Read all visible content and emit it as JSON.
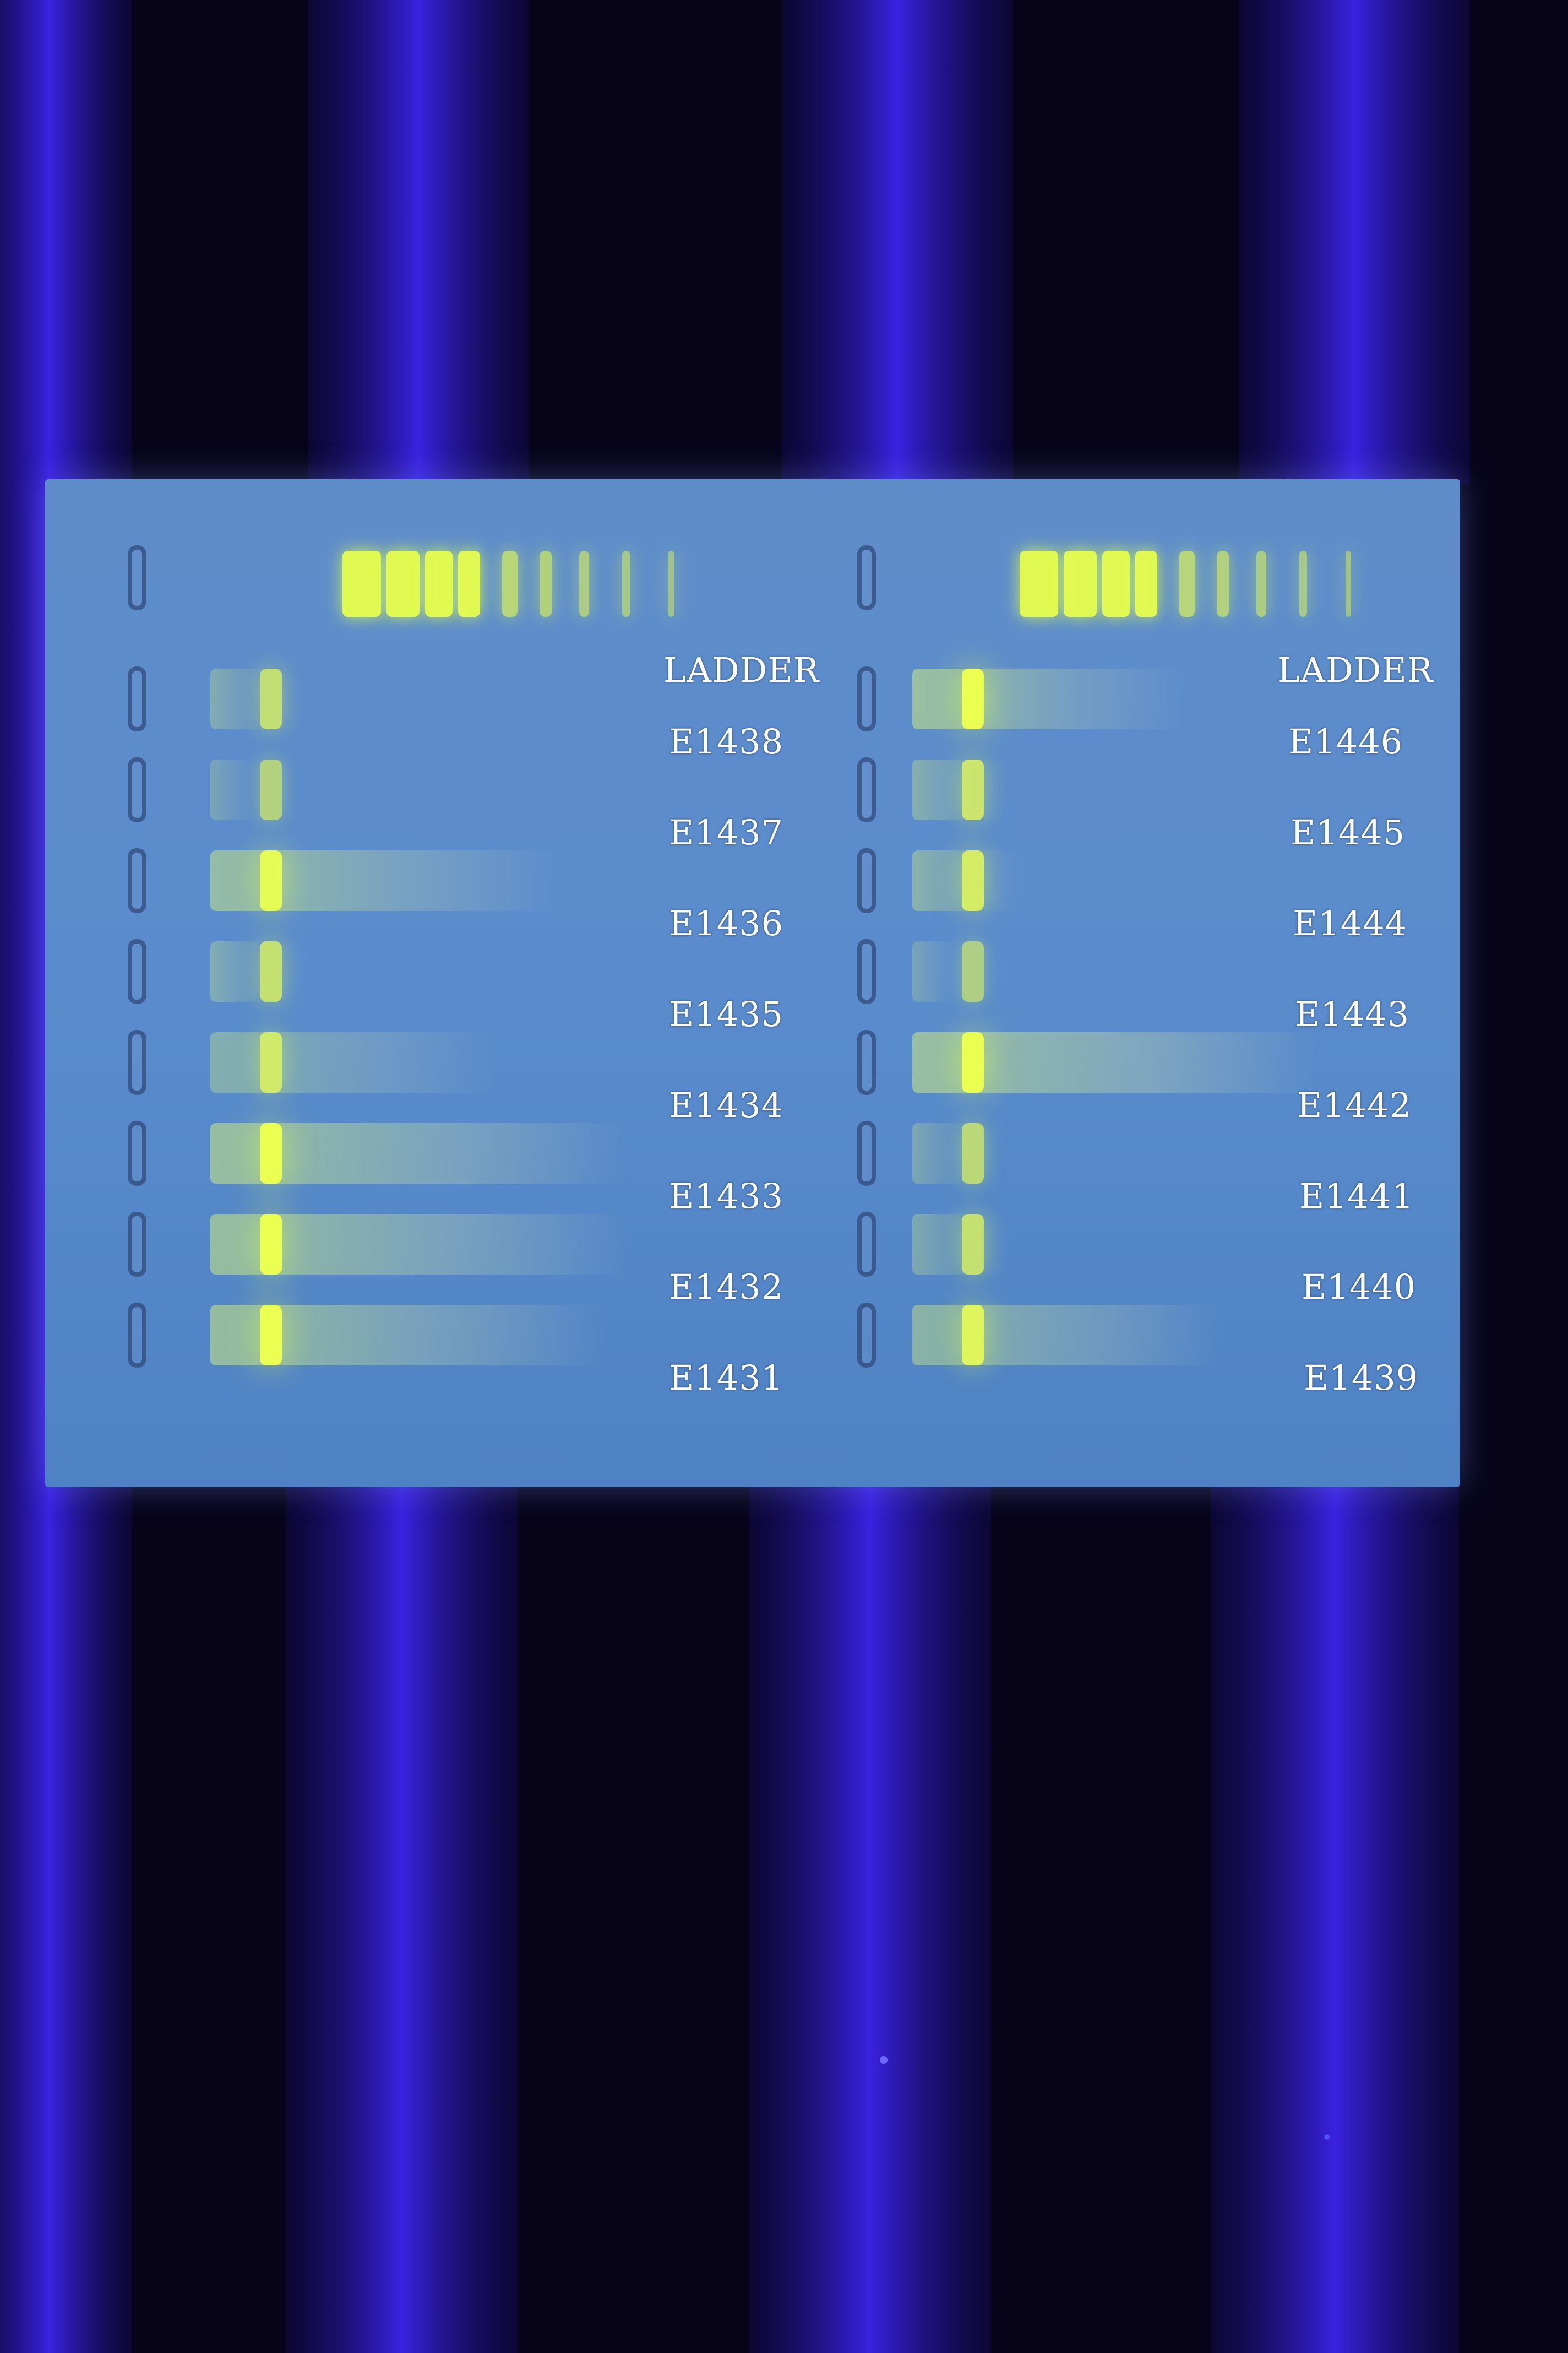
{
  "colors": {
    "background": "#07041a",
    "uv_stripe": "#3a22e0",
    "gel": "#5a8ccd",
    "band": "#e8ff4c",
    "label": "#ffffff"
  },
  "left_lanes": [
    {
      "label": "LADDER",
      "type": "ladder"
    },
    {
      "label": "E1438",
      "intensity": 0.5,
      "smear": 0.1
    },
    {
      "label": "E1437",
      "intensity": 0.35,
      "smear": 0.05
    },
    {
      "label": "E1436",
      "intensity": 0.9,
      "smear": 0.7
    },
    {
      "label": "E1435",
      "intensity": 0.55,
      "smear": 0.1
    },
    {
      "label": "E1434",
      "intensity": 0.6,
      "smear": 0.55
    },
    {
      "label": "E1433",
      "intensity": 1.0,
      "smear": 0.85
    },
    {
      "label": "E1432",
      "intensity": 1.0,
      "smear": 0.85
    },
    {
      "label": "E1431",
      "intensity": 1.0,
      "smear": 0.8
    }
  ],
  "right_lanes": [
    {
      "label": "LADDER",
      "type": "ladder"
    },
    {
      "label": "E1446",
      "intensity": 1.0,
      "smear": 0.6
    },
    {
      "label": "E1445",
      "intensity": 0.6,
      "smear": 0.15
    },
    {
      "label": "E1444",
      "intensity": 0.7,
      "smear": 0.2
    },
    {
      "label": "E1443",
      "intensity": 0.3,
      "smear": 0.05
    },
    {
      "label": "E1442",
      "intensity": 1.0,
      "smear": 0.95
    },
    {
      "label": "E1441",
      "intensity": 0.45,
      "smear": 0.1
    },
    {
      "label": "E1440",
      "intensity": 0.55,
      "smear": 0.15
    },
    {
      "label": "E1439",
      "intensity": 0.8,
      "smear": 0.7
    }
  ]
}
